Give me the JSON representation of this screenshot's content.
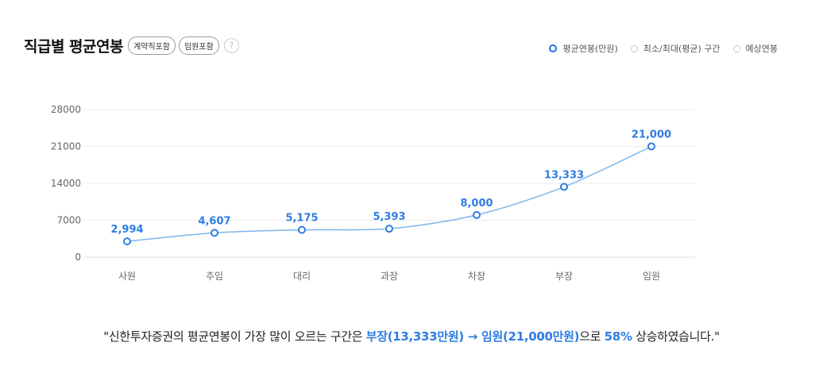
{
  "header": {
    "title": "직급별 평균연봉",
    "badges": [
      "계약직포함",
      "임원포함"
    ],
    "help_icon": "?"
  },
  "legend": [
    {
      "label": "평균연봉(만원)",
      "active": true
    },
    {
      "label": "최소/최대(평균) 구간",
      "active": false
    },
    {
      "label": "예상연봉",
      "active": false
    }
  ],
  "colors": {
    "accent": "#2f7de1",
    "line": "#7bb6ee",
    "grid": "#eeeeee",
    "axis_text": "#666666"
  },
  "chart_data": {
    "type": "line",
    "categories": [
      "사원",
      "주임",
      "대리",
      "과장",
      "차장",
      "부장",
      "임원"
    ],
    "series": [
      {
        "name": "평균연봉(만원)",
        "values": [
          2994,
          4607,
          5175,
          5393,
          8000,
          13333,
          21000
        ]
      }
    ],
    "data_labels": [
      "2,994",
      "4,607",
      "5,175",
      "5,393",
      "8,000",
      "13,333",
      "21,000"
    ],
    "yticks": [
      "0",
      "7000",
      "14000",
      "21000",
      "28000"
    ],
    "ylim": [
      0,
      28000
    ],
    "grid": true
  },
  "summary": {
    "prefix": "\"신한투자증권의 평균연봉이 가장 많이 오르는 구간은 ",
    "highlight1": "부장(13,333만원) → 임원(21,000만원)",
    "middle": "으로 ",
    "highlight2": "58%",
    "suffix": " 상승하였습니다.\""
  }
}
